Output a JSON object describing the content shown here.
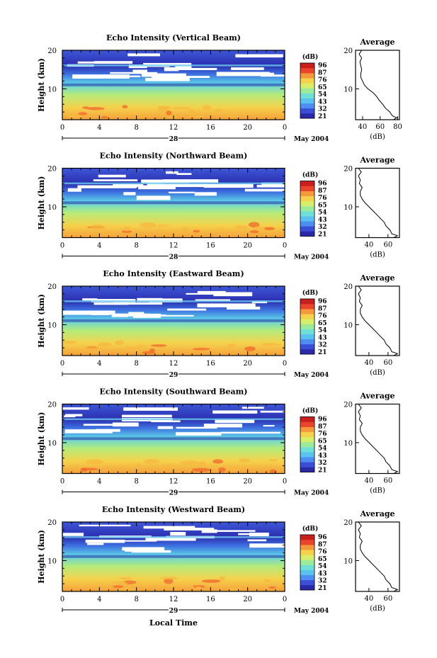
{
  "colors": {
    "colorbar": [
      "#2a2aa8",
      "#3a4fd6",
      "#4d8ef0",
      "#5bc2f0",
      "#6fe0d8",
      "#9ceb9a",
      "#d8ee6a",
      "#f5d24c",
      "#f59a3c",
      "#e8452a",
      "#c81e1e"
    ],
    "axis": "#000000"
  },
  "chart_data": [
    {
      "type": "heatmap",
      "title": "Echo Intensity (Vertical Beam)",
      "ylabel": "Height (km)",
      "xticks": [
        "0",
        "4",
        "8",
        "12",
        "16",
        "20",
        "0"
      ],
      "yticks": [
        "20",
        "10"
      ],
      "date_day": "28",
      "date_month_year": "May 2004",
      "colorbar_unit": "(dB)",
      "colorbar_ticks": [
        "96",
        "87",
        "76",
        "65",
        "54",
        "43",
        "32",
        "21"
      ],
      "ylim": [
        2,
        20
      ],
      "xlim": [
        0,
        24
      ],
      "profile": {
        "title": "Average",
        "xlabel": "(dB)",
        "xticks": [
          "40",
          "60",
          "80"
        ],
        "yticks": [
          "20",
          "10"
        ],
        "xlim": [
          32,
          82
        ],
        "points": [
          [
            75,
            2
          ],
          [
            79,
            2.5
          ],
          [
            74,
            3
          ],
          [
            71,
            4
          ],
          [
            66,
            5
          ],
          [
            63,
            6
          ],
          [
            59,
            7
          ],
          [
            56,
            8
          ],
          [
            52,
            9
          ],
          [
            46,
            10
          ],
          [
            42,
            11
          ],
          [
            40,
            12
          ],
          [
            38,
            13
          ],
          [
            38,
            14
          ],
          [
            39,
            15
          ],
          [
            38,
            16
          ],
          [
            37,
            17
          ],
          [
            39,
            18
          ],
          [
            36,
            19
          ],
          [
            39,
            20
          ]
        ]
      }
    },
    {
      "type": "heatmap",
      "title": "Echo Intensity (Northward Beam)",
      "ylabel": "Height (km)",
      "xticks": [
        "0",
        "4",
        "8",
        "12",
        "16",
        "20",
        "0"
      ],
      "yticks": [
        "20",
        "10"
      ],
      "date_day": "28",
      "date_month_year": "May 2004",
      "colorbar_unit": "(dB)",
      "colorbar_ticks": [
        "96",
        "87",
        "76",
        "65",
        "54",
        "43",
        "32",
        "21"
      ],
      "ylim": [
        2,
        20
      ],
      "xlim": [
        0,
        24
      ],
      "profile": {
        "title": "Average",
        "xlabel": "(dB)",
        "xticks": [
          "40",
          "60"
        ],
        "yticks": [
          "20",
          "10"
        ],
        "xlim": [
          26,
          72
        ],
        "points": [
          [
            66,
            2
          ],
          [
            70,
            2.5
          ],
          [
            64,
            3
          ],
          [
            62,
            4
          ],
          [
            58,
            5
          ],
          [
            56,
            6
          ],
          [
            52,
            7
          ],
          [
            48,
            8
          ],
          [
            44,
            9
          ],
          [
            40,
            10
          ],
          [
            36,
            11
          ],
          [
            33,
            12
          ],
          [
            31,
            13
          ],
          [
            31,
            14
          ],
          [
            33,
            15
          ],
          [
            30,
            16
          ],
          [
            31,
            17
          ],
          [
            29,
            18
          ],
          [
            32,
            19
          ],
          [
            29,
            20
          ]
        ]
      }
    },
    {
      "type": "heatmap",
      "title": "Echo Intensity (Eastward Beam)",
      "ylabel": "Height (km)",
      "xticks": [
        "0",
        "4",
        "8",
        "12",
        "16",
        "20",
        "0"
      ],
      "yticks": [
        "20",
        "10"
      ],
      "date_day": "29",
      "date_month_year": "May 2004",
      "colorbar_unit": "(dB)",
      "colorbar_ticks": [
        "96",
        "87",
        "76",
        "65",
        "54",
        "43",
        "32",
        "21"
      ],
      "ylim": [
        2,
        20
      ],
      "xlim": [
        0,
        24
      ],
      "profile": {
        "title": "Average",
        "xlabel": "(dB)",
        "xticks": [
          "40",
          "60"
        ],
        "yticks": [
          "20",
          "10"
        ],
        "xlim": [
          26,
          72
        ],
        "points": [
          [
            66,
            2
          ],
          [
            70,
            2.5
          ],
          [
            64,
            3
          ],
          [
            62,
            4
          ],
          [
            58,
            5
          ],
          [
            56,
            6
          ],
          [
            52,
            7
          ],
          [
            48,
            8
          ],
          [
            44,
            9
          ],
          [
            40,
            10
          ],
          [
            36,
            11
          ],
          [
            33,
            12
          ],
          [
            31,
            13
          ],
          [
            31,
            14
          ],
          [
            33,
            15
          ],
          [
            30,
            16
          ],
          [
            31,
            17
          ],
          [
            29,
            18
          ],
          [
            32,
            19
          ],
          [
            29,
            20
          ]
        ]
      }
    },
    {
      "type": "heatmap",
      "title": "Echo Intensity (Southward Beam)",
      "ylabel": "Height (km)",
      "xticks": [
        "0",
        "4",
        "8",
        "12",
        "16",
        "20",
        "0"
      ],
      "yticks": [
        "20",
        "10"
      ],
      "date_day": "29",
      "date_month_year": "May 2004",
      "colorbar_unit": "(dB)",
      "colorbar_ticks": [
        "96",
        "87",
        "76",
        "65",
        "54",
        "43",
        "32",
        "21"
      ],
      "ylim": [
        2,
        20
      ],
      "xlim": [
        0,
        24
      ],
      "profile": {
        "title": "Average",
        "xlabel": "(dB)",
        "xticks": [
          "40",
          "60"
        ],
        "yticks": [
          "20",
          "10"
        ],
        "xlim": [
          26,
          72
        ],
        "points": [
          [
            66,
            2
          ],
          [
            70,
            2.5
          ],
          [
            64,
            3
          ],
          [
            62,
            4
          ],
          [
            58,
            5
          ],
          [
            56,
            6
          ],
          [
            52,
            7
          ],
          [
            48,
            8
          ],
          [
            44,
            9
          ],
          [
            40,
            10
          ],
          [
            36,
            11
          ],
          [
            33,
            12
          ],
          [
            31,
            13
          ],
          [
            31,
            14
          ],
          [
            33,
            15
          ],
          [
            30,
            16
          ],
          [
            31,
            17
          ],
          [
            29,
            18
          ],
          [
            32,
            19
          ],
          [
            29,
            20
          ]
        ]
      }
    },
    {
      "type": "heatmap",
      "title": "Echo Intensity (Westward Beam)",
      "ylabel": "Height (km)",
      "xticks": [
        "0",
        "4",
        "8",
        "12",
        "16",
        "20",
        "0"
      ],
      "yticks": [
        "20",
        "10"
      ],
      "date_day": "29",
      "date_month_year": "May 2004",
      "colorbar_unit": "(dB)",
      "colorbar_ticks": [
        "96",
        "87",
        "76",
        "65",
        "54",
        "43",
        "32",
        "21"
      ],
      "ylim": [
        2,
        20
      ],
      "xlim": [
        0,
        24
      ],
      "xlabel": "Local Time",
      "profile": {
        "title": "Average",
        "xlabel": "(dB)",
        "xticks": [
          "40",
          "60"
        ],
        "yticks": [
          "20",
          "10"
        ],
        "xlim": [
          26,
          72
        ],
        "points": [
          [
            66,
            2
          ],
          [
            70,
            2.5
          ],
          [
            64,
            3
          ],
          [
            62,
            4
          ],
          [
            58,
            5
          ],
          [
            56,
            6
          ],
          [
            52,
            7
          ],
          [
            48,
            8
          ],
          [
            44,
            9
          ],
          [
            40,
            10
          ],
          [
            36,
            11
          ],
          [
            33,
            12
          ],
          [
            31,
            13
          ],
          [
            31,
            14
          ],
          [
            33,
            15
          ],
          [
            30,
            16
          ],
          [
            31,
            17
          ],
          [
            29,
            18
          ],
          [
            32,
            19
          ],
          [
            29,
            20
          ]
        ]
      }
    }
  ]
}
